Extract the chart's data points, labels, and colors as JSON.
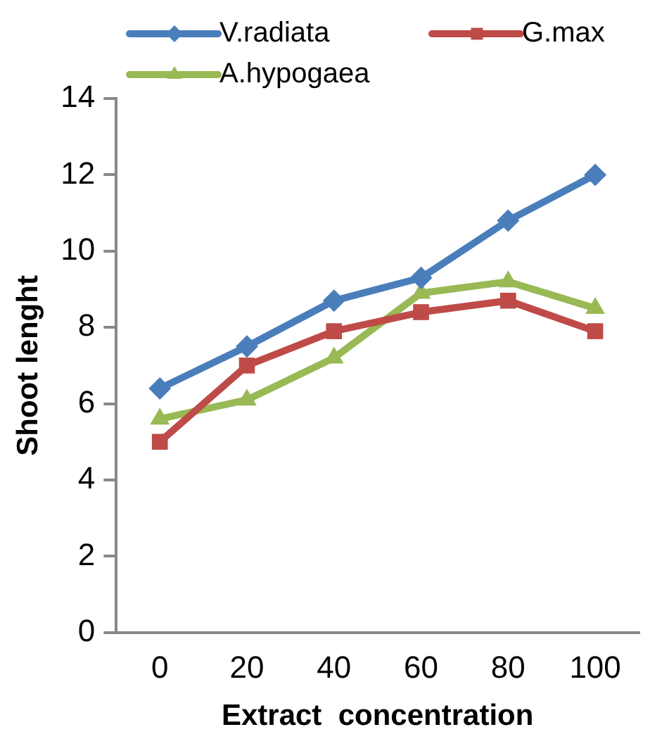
{
  "chart_data": {
    "type": "line",
    "xlabel": "Extract  concentration",
    "ylabel": "Shoot lenght",
    "categories": [
      "0",
      "20",
      "40",
      "60",
      "80",
      "100"
    ],
    "ylim": [
      0,
      14
    ],
    "yticks": [
      0,
      2,
      4,
      6,
      8,
      10,
      12,
      14
    ],
    "grid": false,
    "legend": "top",
    "series": [
      {
        "name": "V.radiata",
        "color": "#4a7ebb",
        "marker": "diamond",
        "values": [
          6.4,
          7.5,
          8.7,
          9.3,
          10.8,
          12.0
        ]
      },
      {
        "name": "G.max",
        "color": "#be4b48",
        "marker": "square",
        "values": [
          5.0,
          7.0,
          7.9,
          8.4,
          8.7,
          7.9
        ]
      },
      {
        "name": "A.hypogaea",
        "color": "#98b954",
        "marker": "triangle",
        "values": [
          5.6,
          6.1,
          7.2,
          8.9,
          9.2,
          8.5
        ]
      }
    ]
  }
}
